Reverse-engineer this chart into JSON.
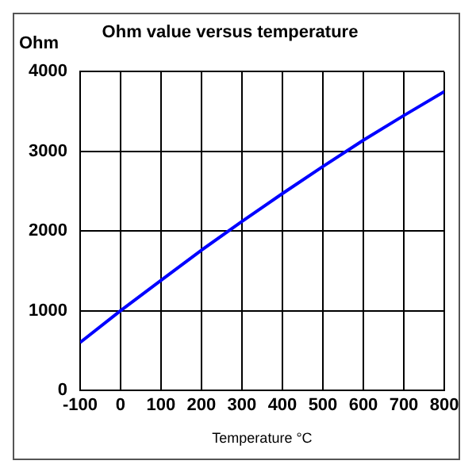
{
  "chart_data": {
    "type": "line",
    "title": "Ohm value versus temperature",
    "xlabel": "Temperature °C",
    "ylabel": "Ohm",
    "x": [
      -100,
      0,
      100,
      200,
      300,
      400,
      500,
      600,
      700,
      800
    ],
    "series": [
      {
        "color": "#0000ff",
        "values": [
          600,
          1000,
          1380,
          1760,
          2120,
          2470,
          2810,
          3140,
          3450,
          3750
        ]
      }
    ],
    "xlim": [
      -100,
      800
    ],
    "xticks": [
      -100,
      0,
      100,
      200,
      300,
      400,
      500,
      600,
      700,
      800
    ],
    "ylim": [
      0,
      4000
    ],
    "yticks": [
      0,
      1000,
      2000,
      3000,
      4000
    ],
    "grid": true,
    "legend": false,
    "marker": "none",
    "line_style": "solid"
  }
}
